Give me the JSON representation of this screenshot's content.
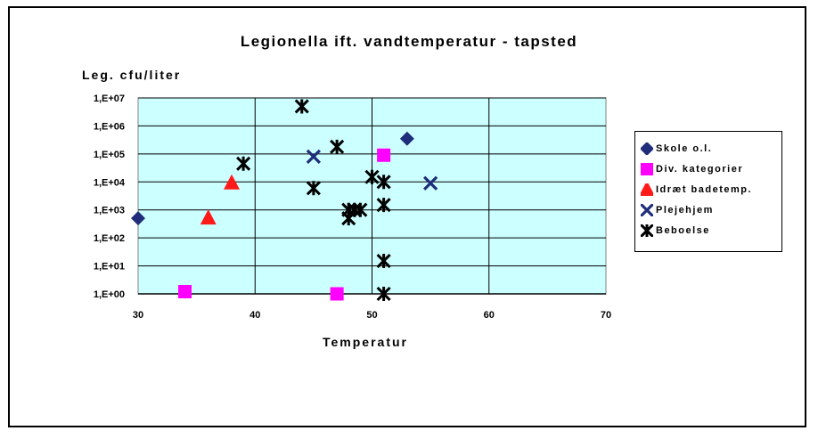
{
  "chart_data": {
    "type": "scatter",
    "title": "Legionella ift. vandtemperatur - tapsted",
    "xlabel": "Temperatur",
    "ylabel": "Leg. cfu/liter",
    "xlim": [
      30,
      70
    ],
    "xticks": [
      30,
      40,
      50,
      60,
      70
    ],
    "ylim_exponent": [
      0,
      7
    ],
    "y_scale": "log",
    "yticks": [
      "1,E+00",
      "1,E+01",
      "1,E+02",
      "1,E+03",
      "1,E+04",
      "1,E+05",
      "1,E+06",
      "1,E+07"
    ],
    "grid": true,
    "plot_background": "#ccffff",
    "legend_position": "right",
    "series": [
      {
        "name": "Skole o.l.",
        "marker": "diamond",
        "color": "#1f2d7a",
        "points": [
          [
            30,
            500
          ],
          [
            53,
            350000
          ]
        ]
      },
      {
        "name": "Div. kategorier",
        "marker": "square",
        "color": "#ff00ff",
        "points": [
          [
            34,
            1.2
          ],
          [
            47,
            1
          ],
          [
            51,
            90000
          ]
        ]
      },
      {
        "name": "Idræt badetemp.",
        "marker": "triangle",
        "color": "#ff1a1a",
        "points": [
          [
            36,
            500
          ],
          [
            38,
            9000
          ]
        ]
      },
      {
        "name": "Plejehjem",
        "marker": "x",
        "color": "#1f2d7a",
        "points": [
          [
            45,
            80000
          ],
          [
            55,
            9000
          ]
        ]
      },
      {
        "name": "Beboelse",
        "marker": "star",
        "color": "#000000",
        "points": [
          [
            39,
            45000
          ],
          [
            44,
            5000000
          ],
          [
            45,
            6000
          ],
          [
            47,
            180000
          ],
          [
            48,
            500
          ],
          [
            48,
            1000
          ],
          [
            48.5,
            1000
          ],
          [
            49,
            1000
          ],
          [
            50,
            15000
          ],
          [
            51,
            10000
          ],
          [
            51,
            1500
          ],
          [
            51,
            15
          ],
          [
            51,
            1
          ]
        ]
      }
    ]
  }
}
